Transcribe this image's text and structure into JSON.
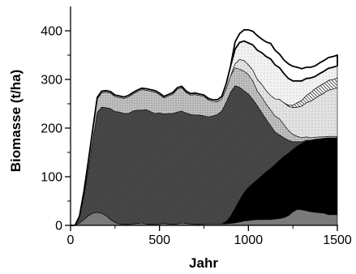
{
  "chart_data": {
    "type": "area",
    "stacked": true,
    "title": "",
    "xlabel": "Jahr",
    "ylabel": "Biomasse (t/ha)",
    "xlim": [
      0,
      1500
    ],
    "ylim": [
      0,
      450
    ],
    "xticks": [
      0,
      500,
      1000,
      1500
    ],
    "yticks": [
      0,
      100,
      200,
      300,
      400
    ],
    "grid": false,
    "legend": "none",
    "x": [
      0,
      25,
      50,
      75,
      100,
      125,
      150,
      175,
      200,
      225,
      250,
      275,
      300,
      325,
      350,
      375,
      400,
      425,
      450,
      475,
      500,
      525,
      550,
      575,
      600,
      625,
      650,
      675,
      700,
      725,
      750,
      775,
      800,
      825,
      850,
      875,
      900,
      925,
      950,
      975,
      1000,
      1025,
      1050,
      1075,
      1100,
      1125,
      1150,
      1175,
      1200,
      1225,
      1250,
      1275,
      1300,
      1325,
      1350,
      1375,
      1400,
      1425,
      1450,
      1475,
      1500
    ],
    "series": [
      {
        "color": "#7a7a7a",
        "values": [
          0,
          0,
          5,
          12,
          20,
          25,
          27,
          25,
          20,
          12,
          6,
          3,
          2,
          2,
          3,
          4,
          5,
          3,
          2,
          2,
          3,
          4,
          3,
          2,
          3,
          5,
          4,
          3,
          2,
          2,
          3,
          3,
          3,
          3,
          3,
          3,
          4,
          5,
          7,
          9,
          10,
          11,
          12,
          12,
          12,
          12,
          13,
          14,
          16,
          20,
          28,
          33,
          32,
          30,
          28,
          27,
          26,
          25,
          22,
          22,
          22
        ]
      },
      {
        "color": "#000000",
        "values": [
          0,
          0,
          0,
          0,
          0,
          0,
          0,
          0,
          0,
          0,
          0,
          0,
          0,
          0,
          0,
          0,
          0,
          0,
          0,
          0,
          0,
          0,
          0,
          0,
          0,
          0,
          0,
          0,
          0,
          0,
          0,
          0,
          0,
          0,
          0,
          5,
          15,
          30,
          45,
          58,
          68,
          75,
          82,
          90,
          98,
          105,
          112,
          120,
          126,
          128,
          128,
          130,
          136,
          143,
          146,
          150,
          152,
          154,
          158,
          158,
          158
        ]
      },
      {
        "color": "#4a4a4a",
        "values": [
          0,
          0,
          12,
          48,
          95,
          150,
          205,
          218,
          222,
          228,
          228,
          230,
          228,
          228,
          232,
          233,
          232,
          235,
          232,
          228,
          228,
          225,
          227,
          228,
          230,
          230,
          227,
          225,
          225,
          225,
          222,
          220,
          222,
          225,
          232,
          245,
          255,
          252,
          232,
          210,
          192,
          173,
          152,
          130,
          108,
          88,
          67,
          52,
          38,
          27,
          16,
          9,
          4,
          2,
          1,
          0,
          0,
          0,
          0,
          0,
          0
        ]
      },
      {
        "color": "#b0b0b0",
        "values": [
          0,
          0,
          0,
          8,
          15,
          20,
          28,
          30,
          32,
          32,
          31,
          30,
          31,
          34,
          35,
          38,
          42,
          40,
          42,
          44,
          38,
          33,
          36,
          40,
          47,
          48,
          42,
          40,
          42,
          40,
          40,
          35,
          30,
          26,
          25,
          28,
          34,
          37,
          37,
          40,
          40,
          38,
          30,
          32,
          31,
          32,
          33,
          33,
          27,
          20,
          15,
          11,
          8,
          7,
          5,
          4,
          4,
          3,
          3,
          3,
          3
        ]
      },
      {
        "color": "#d4d4d4",
        "values": [
          0,
          0,
          0,
          0,
          0,
          0,
          0,
          0,
          0,
          0,
          0,
          0,
          0,
          0,
          0,
          0,
          0,
          0,
          0,
          0,
          0,
          0,
          0,
          0,
          0,
          0,
          0,
          0,
          0,
          0,
          0,
          0,
          0,
          0,
          0,
          0,
          0,
          8,
          20,
          22,
          20,
          22,
          24,
          26,
          28,
          30,
          35,
          40,
          45,
          50,
          55,
          60,
          65,
          70,
          75,
          80,
          85,
          90,
          95,
          97,
          100
        ]
      },
      {
        "color": "#505050",
        "values": [
          0,
          0,
          0,
          0,
          0,
          0,
          0,
          0,
          0,
          0,
          0,
          0,
          0,
          0,
          0,
          0,
          0,
          0,
          0,
          0,
          0,
          0,
          0,
          0,
          0,
          0,
          0,
          0,
          0,
          0,
          0,
          0,
          0,
          0,
          0,
          0,
          0,
          0,
          0,
          0,
          0,
          0,
          0,
          0,
          0,
          0,
          0,
          0,
          0,
          2,
          5,
          9,
          12,
          15,
          18,
          20,
          20,
          20,
          20,
          20,
          20
        ]
      },
      {
        "color": "#ebebeb",
        "values": [
          0,
          0,
          2,
          2,
          2,
          3,
          3,
          3,
          3,
          3,
          3,
          3,
          3,
          3,
          3,
          3,
          3,
          3,
          3,
          3,
          3,
          3,
          3,
          3,
          3,
          3,
          3,
          3,
          3,
          3,
          3,
          3,
          3,
          4,
          5,
          10,
          20,
          30,
          35,
          40,
          45,
          52,
          60,
          65,
          70,
          75,
          70,
          65,
          60,
          55,
          50,
          45,
          40,
          35,
          30,
          25,
          25,
          25,
          25,
          25,
          25
        ]
      },
      {
        "color": "#ffffff",
        "values": [
          0,
          0,
          0,
          0,
          0,
          0,
          0,
          0,
          0,
          0,
          0,
          0,
          0,
          0,
          0,
          0,
          0,
          0,
          0,
          0,
          0,
          0,
          0,
          0,
          0,
          0,
          0,
          0,
          0,
          0,
          0,
          0,
          0,
          0,
          0,
          0,
          0,
          15,
          18,
          23,
          27,
          28,
          30,
          28,
          30,
          32,
          30,
          28,
          28,
          30,
          30,
          28,
          25,
          23,
          22,
          22,
          22,
          22,
          22,
          22,
          22
        ]
      }
    ]
  }
}
